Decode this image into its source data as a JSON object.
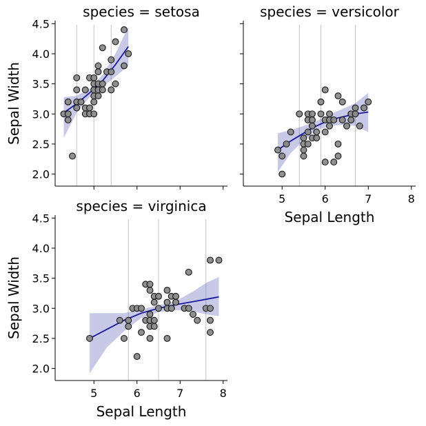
{
  "chart_data": {
    "type": "scatter",
    "figure": "facet-grid",
    "x_variable": "Sepal Length",
    "y_variable": "Sepal Width",
    "xlim": [
      4.1,
      8.1
    ],
    "ylim": [
      1.8,
      4.55
    ],
    "x_ticks": [
      5,
      6,
      7,
      8
    ],
    "y_ticks": [
      2.0,
      2.5,
      3.0,
      3.5,
      4.0,
      4.5
    ],
    "x_tick_labels": [
      "5",
      "6",
      "7",
      "8"
    ],
    "y_tick_labels": [
      "2.0",
      "2.5",
      "3.0",
      "3.5",
      "4.0",
      "4.5"
    ],
    "colors": {
      "point_fill": "#8a8a8a",
      "point_edge": "#111111",
      "fit_line": "#1a1a9e",
      "ci_band": "#4a4aae",
      "quartile_line": "#c4c4c4"
    },
    "panels": [
      {
        "title": "species = setosa",
        "xlabel": "",
        "ylabel": "Sepal Width",
        "show_x_tick_labels": false,
        "show_y_tick_labels": true,
        "quartile_lines": [
          4.6,
          5.0,
          5.4
        ],
        "points": [
          [
            4.3,
            3.0
          ],
          [
            4.4,
            2.9
          ],
          [
            4.4,
            3.0
          ],
          [
            4.4,
            3.2
          ],
          [
            4.5,
            2.3
          ],
          [
            4.6,
            3.1
          ],
          [
            4.6,
            3.2
          ],
          [
            4.6,
            3.4
          ],
          [
            4.6,
            3.6
          ],
          [
            4.7,
            3.2
          ],
          [
            4.8,
            3.0
          ],
          [
            4.8,
            3.1
          ],
          [
            4.8,
            3.4
          ],
          [
            4.9,
            3.0
          ],
          [
            4.9,
            3.1
          ],
          [
            4.9,
            3.6
          ],
          [
            5.0,
            3.0
          ],
          [
            5.0,
            3.2
          ],
          [
            5.0,
            3.3
          ],
          [
            5.0,
            3.4
          ],
          [
            5.0,
            3.5
          ],
          [
            5.0,
            3.6
          ],
          [
            5.1,
            3.3
          ],
          [
            5.1,
            3.4
          ],
          [
            5.1,
            3.5
          ],
          [
            5.1,
            3.7
          ],
          [
            5.1,
            3.8
          ],
          [
            5.2,
            3.4
          ],
          [
            5.2,
            3.5
          ],
          [
            5.2,
            4.1
          ],
          [
            5.3,
            3.7
          ],
          [
            5.4,
            3.4
          ],
          [
            5.4,
            3.7
          ],
          [
            5.4,
            3.9
          ],
          [
            5.5,
            3.5
          ],
          [
            5.5,
            4.2
          ],
          [
            5.7,
            3.8
          ],
          [
            5.7,
            4.4
          ],
          [
            5.8,
            4.0
          ]
        ],
        "fit": [
          [
            4.3,
            3.02
          ],
          [
            4.6,
            3.17
          ],
          [
            4.9,
            3.35
          ],
          [
            5.2,
            3.55
          ],
          [
            5.5,
            3.82
          ],
          [
            5.8,
            4.12
          ]
        ],
        "ci_upper": [
          [
            4.3,
            3.28
          ],
          [
            4.6,
            3.3
          ],
          [
            4.9,
            3.42
          ],
          [
            5.2,
            3.65
          ],
          [
            5.5,
            4.0
          ],
          [
            5.8,
            4.45
          ]
        ],
        "ci_lower": [
          [
            4.3,
            2.6
          ],
          [
            4.6,
            3.02
          ],
          [
            4.9,
            3.28
          ],
          [
            5.2,
            3.45
          ],
          [
            5.5,
            3.62
          ],
          [
            5.8,
            3.8
          ]
        ]
      },
      {
        "title": "species = versicolor",
        "xlabel": "Sepal Length",
        "ylabel": "",
        "show_x_tick_labels": true,
        "show_y_tick_labels": false,
        "quartile_lines": [
          5.4,
          5.9,
          6.7
        ],
        "points": [
          [
            4.9,
            2.4
          ],
          [
            5.0,
            2.0
          ],
          [
            5.0,
            2.3
          ],
          [
            5.1,
            2.5
          ],
          [
            5.2,
            2.7
          ],
          [
            5.4,
            3.0
          ],
          [
            5.5,
            2.3
          ],
          [
            5.5,
            2.4
          ],
          [
            5.5,
            2.5
          ],
          [
            5.5,
            2.6
          ],
          [
            5.6,
            2.5
          ],
          [
            5.6,
            2.7
          ],
          [
            5.6,
            2.9
          ],
          [
            5.6,
            3.0
          ],
          [
            5.7,
            2.6
          ],
          [
            5.7,
            2.8
          ],
          [
            5.7,
            2.9
          ],
          [
            5.7,
            3.0
          ],
          [
            5.8,
            2.6
          ],
          [
            5.8,
            2.7
          ],
          [
            5.9,
            3.0
          ],
          [
            5.9,
            3.2
          ],
          [
            6.0,
            2.2
          ],
          [
            6.0,
            2.7
          ],
          [
            6.0,
            2.9
          ],
          [
            6.0,
            3.4
          ],
          [
            6.1,
            2.8
          ],
          [
            6.1,
            2.9
          ],
          [
            6.1,
            3.0
          ],
          [
            6.2,
            2.2
          ],
          [
            6.2,
            2.9
          ],
          [
            6.3,
            2.3
          ],
          [
            6.3,
            2.5
          ],
          [
            6.3,
            3.3
          ],
          [
            6.4,
            2.9
          ],
          [
            6.4,
            3.2
          ],
          [
            6.5,
            2.8
          ],
          [
            6.6,
            2.9
          ],
          [
            6.6,
            3.0
          ],
          [
            6.7,
            3.0
          ],
          [
            6.7,
            3.1
          ],
          [
            6.8,
            2.8
          ],
          [
            6.9,
            3.1
          ],
          [
            7.0,
            3.2
          ]
        ],
        "fit": [
          [
            4.9,
            2.4
          ],
          [
            5.2,
            2.55
          ],
          [
            5.5,
            2.68
          ],
          [
            5.8,
            2.8
          ],
          [
            6.1,
            2.9
          ],
          [
            6.4,
            2.95
          ],
          [
            6.7,
            3.0
          ],
          [
            7.0,
            3.03
          ]
        ],
        "ci_upper": [
          [
            4.9,
            2.68
          ],
          [
            5.2,
            2.73
          ],
          [
            5.5,
            2.8
          ],
          [
            5.8,
            2.88
          ],
          [
            6.1,
            2.99
          ],
          [
            6.4,
            3.08
          ],
          [
            6.7,
            3.18
          ],
          [
            7.0,
            3.35
          ]
        ],
        "ci_lower": [
          [
            4.9,
            2.03
          ],
          [
            5.2,
            2.35
          ],
          [
            5.5,
            2.56
          ],
          [
            5.8,
            2.73
          ],
          [
            6.1,
            2.8
          ],
          [
            6.4,
            2.82
          ],
          [
            6.7,
            2.8
          ],
          [
            7.0,
            2.7
          ]
        ]
      },
      {
        "title": "species = virginica",
        "xlabel": "Sepal Length",
        "ylabel": "Sepal Width",
        "show_x_tick_labels": true,
        "show_y_tick_labels": true,
        "quartile_lines": [
          5.8,
          6.5,
          7.6
        ],
        "points": [
          [
            4.9,
            2.5
          ],
          [
            5.6,
            2.8
          ],
          [
            5.7,
            2.5
          ],
          [
            5.8,
            2.7
          ],
          [
            5.8,
            2.8
          ],
          [
            5.9,
            3.0
          ],
          [
            6.0,
            2.2
          ],
          [
            6.0,
            3.0
          ],
          [
            6.1,
            2.6
          ],
          [
            6.1,
            3.0
          ],
          [
            6.2,
            2.8
          ],
          [
            6.2,
            3.4
          ],
          [
            6.3,
            2.5
          ],
          [
            6.3,
            2.7
          ],
          [
            6.3,
            2.8
          ],
          [
            6.3,
            2.9
          ],
          [
            6.3,
            3.3
          ],
          [
            6.3,
            3.4
          ],
          [
            6.4,
            2.7
          ],
          [
            6.4,
            2.8
          ],
          [
            6.4,
            3.1
          ],
          [
            6.4,
            3.2
          ],
          [
            6.5,
            3.0
          ],
          [
            6.5,
            3.2
          ],
          [
            6.7,
            2.5
          ],
          [
            6.7,
            3.0
          ],
          [
            6.7,
            3.1
          ],
          [
            6.7,
            3.3
          ],
          [
            6.8,
            3.0
          ],
          [
            6.8,
            3.2
          ],
          [
            6.9,
            3.1
          ],
          [
            6.9,
            3.2
          ],
          [
            7.1,
            3.0
          ],
          [
            7.2,
            3.0
          ],
          [
            7.2,
            3.6
          ],
          [
            7.3,
            2.9
          ],
          [
            7.4,
            2.8
          ],
          [
            7.6,
            3.0
          ],
          [
            7.7,
            2.6
          ],
          [
            7.7,
            2.8
          ],
          [
            7.7,
            3.0
          ],
          [
            7.7,
            3.8
          ],
          [
            7.9,
            3.8
          ]
        ],
        "fit": [
          [
            4.9,
            2.5
          ],
          [
            5.3,
            2.65
          ],
          [
            5.7,
            2.8
          ],
          [
            6.1,
            2.92
          ],
          [
            6.5,
            3.0
          ],
          [
            6.9,
            3.06
          ],
          [
            7.3,
            3.11
          ],
          [
            7.6,
            3.15
          ],
          [
            7.9,
            3.19
          ]
        ],
        "ci_upper": [
          [
            4.9,
            2.92
          ],
          [
            5.3,
            2.92
          ],
          [
            5.7,
            2.92
          ],
          [
            6.1,
            2.98
          ],
          [
            6.5,
            3.05
          ],
          [
            6.9,
            3.12
          ],
          [
            7.3,
            3.28
          ],
          [
            7.6,
            3.42
          ],
          [
            7.9,
            3.52
          ]
        ],
        "ci_lower": [
          [
            4.9,
            1.92
          ],
          [
            5.3,
            2.35
          ],
          [
            5.7,
            2.62
          ],
          [
            6.1,
            2.84
          ],
          [
            6.5,
            2.94
          ],
          [
            6.9,
            2.97
          ],
          [
            7.3,
            2.95
          ],
          [
            7.6,
            2.9
          ],
          [
            7.9,
            2.87
          ]
        ]
      }
    ]
  }
}
